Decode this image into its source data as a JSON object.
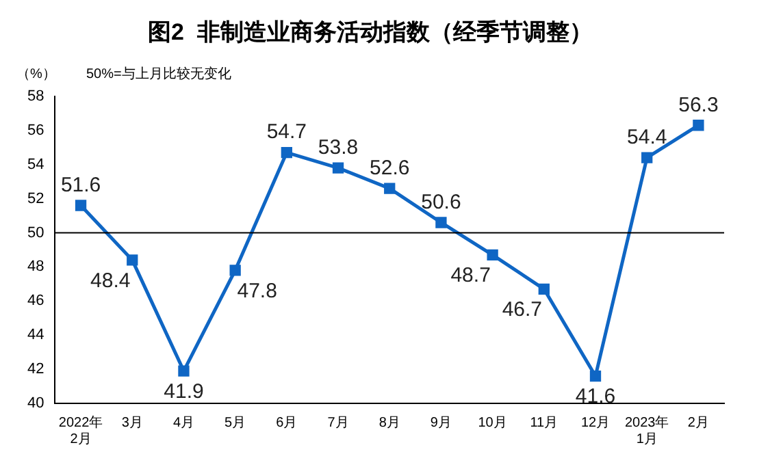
{
  "chart_data": {
    "type": "line",
    "title": "图2  非制造业商务活动指数（经季节调整）",
    "ylabel": "（%）",
    "annotations": [
      "50%=与上月比较无变化"
    ],
    "categories": [
      "2022年\n2月",
      "3月",
      "4月",
      "5月",
      "6月",
      "7月",
      "8月",
      "9月",
      "10月",
      "11月",
      "12月",
      "2023年\n1月",
      "2月"
    ],
    "series": [
      {
        "color": "#0f66c4",
        "values": [
          51.6,
          48.4,
          41.9,
          47.8,
          54.7,
          53.8,
          52.6,
          50.6,
          48.7,
          46.7,
          41.6,
          54.4,
          56.3
        ]
      }
    ],
    "ylim": [
      40,
      58
    ],
    "yticks": [
      40,
      42,
      44,
      46,
      48,
      50,
      52,
      54,
      56,
      58
    ],
    "ref_lines": [
      {
        "axis": "y",
        "value": 50,
        "color": "#000000"
      }
    ],
    "marker": "square",
    "line_style": "solid",
    "data_labels": true,
    "grid": false,
    "legend": false
  }
}
